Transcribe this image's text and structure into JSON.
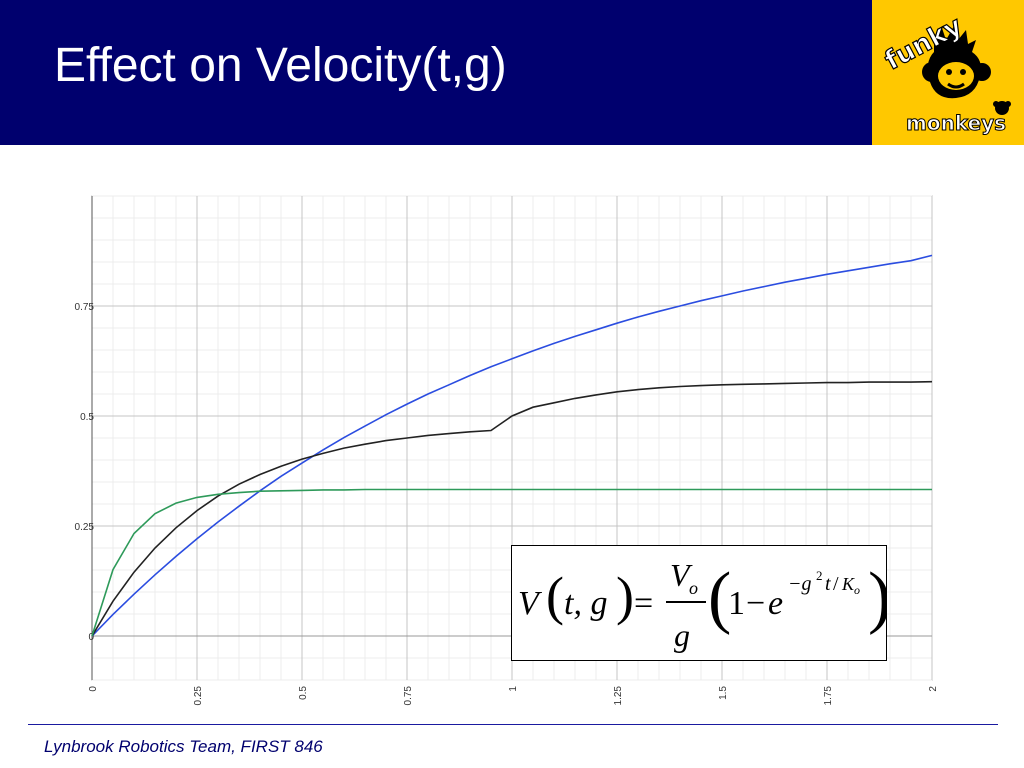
{
  "slide": {
    "title": "Effect on Velocity(t,g)",
    "footer": "Lynbrook Robotics Team, FIRST 846"
  },
  "logo": {
    "top_text": "funky",
    "bottom_text": "monkeys",
    "background": "#ffc800"
  },
  "formula": {
    "lhs_v": "V",
    "lhs_args": "t, g",
    "equals": "=",
    "num": "V",
    "num_sub": "o",
    "den": "g",
    "one": "1",
    "minus": "−",
    "e": "e",
    "exp_main": "−g",
    "exp_sq": "2",
    "exp_t": "t",
    "exp_slash": "/",
    "exp_k": "K",
    "exp_k_sub": "o"
  },
  "colors": {
    "header": "#00006e",
    "blue_series": "#2b4de0",
    "black_series": "#222222",
    "green_series": "#2e9a5a"
  },
  "chart_data": {
    "type": "line",
    "title": "",
    "xlabel": "",
    "ylabel": "",
    "xlim": [
      0,
      2
    ],
    "ylim": [
      -0.1,
      1
    ],
    "grid": true,
    "x_ticks": [
      "0",
      "0.25",
      "0.5",
      "0.75",
      "1",
      "1.25",
      "1.5",
      "1.75",
      "2"
    ],
    "y_ticks": [
      "0",
      "0.25",
      "0.5",
      "0.75"
    ],
    "x": [
      0,
      0.05,
      0.1,
      0.15,
      0.2,
      0.25,
      0.3,
      0.35,
      0.4,
      0.45,
      0.5,
      0.55,
      0.6,
      0.65,
      0.7,
      0.75,
      0.8,
      0.85,
      0.9,
      0.95,
      1,
      1.05,
      1.1,
      1.15,
      1.2,
      1.25,
      1.3,
      1.35,
      1.4,
      1.45,
      1.5,
      1.55,
      1.6,
      1.65,
      1.7,
      1.75,
      1.8,
      1.85,
      1.9,
      1.95,
      2
    ],
    "series": [
      {
        "color": "#2b4de0",
        "values": [
          0,
          0.049,
          0.095,
          0.139,
          0.181,
          0.221,
          0.259,
          0.295,
          0.33,
          0.363,
          0.393,
          0.423,
          0.451,
          0.477,
          0.503,
          0.527,
          0.55,
          0.571,
          0.592,
          0.612,
          0.63,
          0.648,
          0.665,
          0.681,
          0.696,
          0.711,
          0.725,
          0.738,
          0.75,
          0.762,
          0.773,
          0.784,
          0.794,
          0.804,
          0.813,
          0.822,
          0.83,
          0.838,
          0.846,
          0.853,
          0.865
        ]
      },
      {
        "color": "#222222",
        "values": [
          0,
          0.079,
          0.145,
          0.2,
          0.246,
          0.285,
          0.318,
          0.345,
          0.367,
          0.386,
          0.402,
          0.415,
          0.427,
          0.436,
          0.444,
          0.45,
          0.456,
          0.46,
          0.464,
          0.467,
          0.5,
          0.52,
          0.53,
          0.54,
          0.548,
          0.555,
          0.56,
          0.564,
          0.567,
          0.569,
          0.571,
          0.572,
          0.573,
          0.574,
          0.575,
          0.576,
          0.576,
          0.577,
          0.577,
          0.577,
          0.578
        ]
      },
      {
        "color": "#2e9a5a",
        "values": [
          0,
          0.151,
          0.233,
          0.278,
          0.302,
          0.315,
          0.322,
          0.326,
          0.329,
          0.33,
          0.331,
          0.332,
          0.332,
          0.333,
          0.333,
          0.333,
          0.333,
          0.333,
          0.333,
          0.333,
          0.333,
          0.333,
          0.333,
          0.333,
          0.333,
          0.333,
          0.333,
          0.333,
          0.333,
          0.333,
          0.333,
          0.333,
          0.333,
          0.333,
          0.333,
          0.333,
          0.333,
          0.333,
          0.333,
          0.333,
          0.333
        ]
      }
    ]
  }
}
